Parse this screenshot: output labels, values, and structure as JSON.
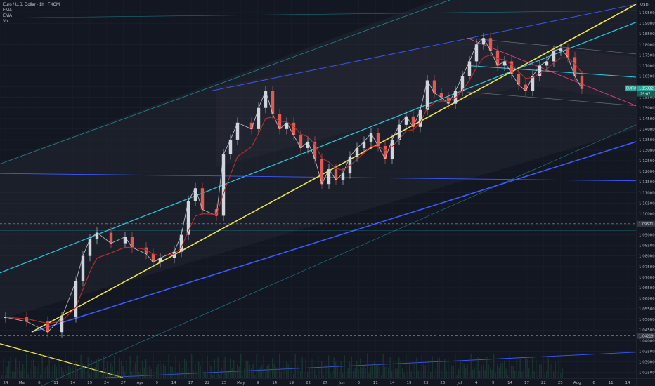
{
  "header": {
    "title": "Euro / U.S. Dollar · 1h · FXCM",
    "indicators": [
      "EMA",
      "EMA",
      "Vol"
    ]
  },
  "colors": {
    "background": "#131722",
    "candle_up": "#d0d4dc",
    "candle_down": "#e05a52",
    "ema": "#b8302e",
    "trend_yellow": "#f0e442",
    "channel_teal": "#26c6da",
    "channel_blue": "#3d5afe",
    "pink_line": "#e0407a",
    "price_badge": "#26a69a"
  },
  "chart_data": {
    "type": "candlestick",
    "symbol": "EURUSD",
    "timeframe": "1h",
    "currency": "USD",
    "last_price": "1.15932",
    "last_price_sub": "29:07",
    "price_labels": [
      "1.09521",
      "1.04219"
    ],
    "ylim": [
      1.0225,
      1.201
    ],
    "y_ticks": [
      "1.19500",
      "1.19000",
      "1.18500",
      "1.18000",
      "1.17500",
      "1.17000",
      "1.16500",
      "1.16000",
      "1.15500",
      "1.15000",
      "1.14500",
      "1.14000",
      "1.13500",
      "1.13000",
      "1.12500",
      "1.12000",
      "1.11500",
      "1.11000",
      "1.10500",
      "1.10000",
      "1.09500",
      "1.09000",
      "1.08500",
      "1.08000",
      "1.07500",
      "1.07000",
      "1.06500",
      "1.06000",
      "1.05500",
      "1.05000",
      "1.04500",
      "1.04000",
      "1.03500",
      "1.03000",
      "1.02500"
    ],
    "x_ticks": [
      "24",
      "Mar",
      "6",
      "11",
      "14",
      "19",
      "24",
      "27",
      "Apr",
      "9",
      "14",
      "17",
      "22",
      "25",
      "May",
      "9",
      "14",
      "19",
      "22",
      "27",
      "Jun",
      "6",
      "11",
      "14",
      "19",
      "23",
      "26",
      "Jul",
      "4",
      "9",
      "14",
      "17",
      "22",
      "25",
      "Aug",
      "6",
      "11",
      "14"
    ],
    "price_path": [
      [
        0,
        1.051
      ],
      [
        3,
        1.049
      ],
      [
        6,
        1.044
      ],
      [
        8,
        1.051
      ],
      [
        10,
        1.068
      ],
      [
        11,
        1.08
      ],
      [
        12,
        1.088
      ],
      [
        13,
        1.091
      ],
      [
        15,
        1.086
      ],
      [
        17,
        1.089
      ],
      [
        18,
        1.084
      ],
      [
        20,
        1.081
      ],
      [
        21,
        1.077
      ],
      [
        22,
        1.079
      ],
      [
        24,
        1.082
      ],
      [
        25,
        1.09
      ],
      [
        26,
        1.106
      ],
      [
        27,
        1.112
      ],
      [
        28,
        1.102
      ],
      [
        30,
        1.099
      ],
      [
        31,
        1.128
      ],
      [
        32,
        1.135
      ],
      [
        33,
        1.143
      ],
      [
        35,
        1.14
      ],
      [
        36,
        1.15
      ],
      [
        37,
        1.158
      ],
      [
        38,
        1.147
      ],
      [
        39,
        1.14
      ],
      [
        40,
        1.143
      ],
      [
        41,
        1.137
      ],
      [
        42,
        1.131
      ],
      [
        43,
        1.134
      ],
      [
        44,
        1.126
      ],
      [
        45,
        1.114
      ],
      [
        46,
        1.121
      ],
      [
        47,
        1.116
      ],
      [
        48,
        1.119
      ],
      [
        49,
        1.127
      ],
      [
        50,
        1.131
      ],
      [
        51,
        1.134
      ],
      [
        52,
        1.138
      ],
      [
        53,
        1.132
      ],
      [
        54,
        1.126
      ],
      [
        55,
        1.135
      ],
      [
        56,
        1.142
      ],
      [
        57,
        1.146
      ],
      [
        58,
        1.141
      ],
      [
        59,
        1.149
      ],
      [
        60,
        1.163
      ],
      [
        61,
        1.157
      ],
      [
        62,
        1.155
      ],
      [
        63,
        1.152
      ],
      [
        64,
        1.158
      ],
      [
        65,
        1.165
      ],
      [
        66,
        1.172
      ],
      [
        67,
        1.18
      ],
      [
        68,
        1.183
      ],
      [
        69,
        1.177
      ],
      [
        70,
        1.17
      ],
      [
        71,
        1.172
      ],
      [
        72,
        1.166
      ],
      [
        73,
        1.161
      ],
      [
        74,
        1.158
      ],
      [
        75,
        1.165
      ],
      [
        76,
        1.17
      ],
      [
        77,
        1.172
      ],
      [
        78,
        1.177
      ],
      [
        79,
        1.178
      ],
      [
        80,
        1.174
      ],
      [
        81,
        1.165
      ],
      [
        82,
        1.159
      ]
    ]
  }
}
